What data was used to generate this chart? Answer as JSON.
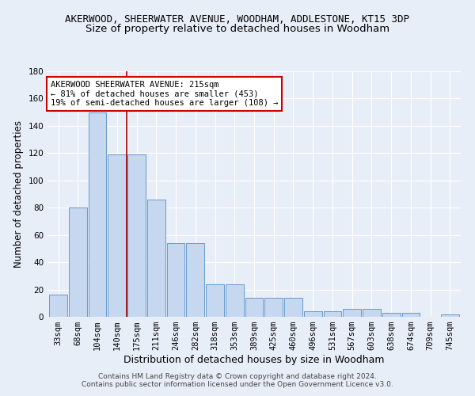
{
  "title1": "AKERWOOD, SHEERWATER AVENUE, WOODHAM, ADDLESTONE, KT15 3DP",
  "title2": "Size of property relative to detached houses in Woodham",
  "xlabel": "Distribution of detached houses by size in Woodham",
  "ylabel": "Number of detached properties",
  "bar_labels": [
    "33sqm",
    "68sqm",
    "104sqm",
    "140sqm",
    "175sqm",
    "211sqm",
    "246sqm",
    "282sqm",
    "318sqm",
    "353sqm",
    "389sqm",
    "425sqm",
    "460sqm",
    "496sqm",
    "531sqm",
    "567sqm",
    "603sqm",
    "638sqm",
    "674sqm",
    "709sqm",
    "745sqm"
  ],
  "bar_values": [
    16,
    80,
    150,
    119,
    119,
    86,
    54,
    54,
    24,
    24,
    14,
    14,
    14,
    4,
    4,
    6,
    6,
    3,
    3,
    0,
    2
  ],
  "bar_color": "#c5d8f0",
  "bar_edge_color": "#6699cc",
  "bg_color": "#e8eef8",
  "grid_color": "#ffffff",
  "vline_x": 3.5,
  "vline_color": "#aa0000",
  "annotation_text": "AKERWOOD SHEERWATER AVENUE: 215sqm\n← 81% of detached houses are smaller (453)\n19% of semi-detached houses are larger (108) →",
  "annotation_box_color": "#ffffff",
  "annotation_box_edge": "#cc0000",
  "ylim": [
    0,
    180
  ],
  "yticks": [
    0,
    20,
    40,
    60,
    80,
    100,
    120,
    140,
    160,
    180
  ],
  "footer": "Contains HM Land Registry data © Crown copyright and database right 2024.\nContains public sector information licensed under the Open Government Licence v3.0.",
  "title1_fontsize": 9,
  "title2_fontsize": 9.5,
  "xlabel_fontsize": 9,
  "ylabel_fontsize": 8.5,
  "tick_fontsize": 7.5,
  "annotation_fontsize": 7.5,
  "footer_fontsize": 6.5
}
